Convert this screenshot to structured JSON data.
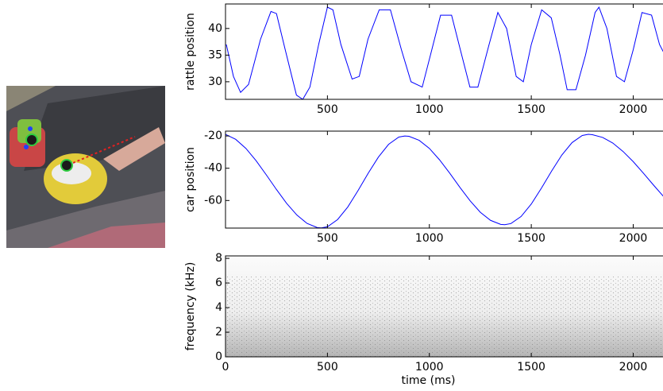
{
  "chart_data": [
    {
      "type": "line",
      "ylabel": "rattle position",
      "x": [
        4,
        39,
        74,
        113,
        172,
        223,
        250,
        293,
        348,
        379,
        414,
        457,
        500,
        527,
        566,
        621,
        656,
        699,
        754,
        809,
        863,
        910,
        965,
        1012,
        1055,
        1109,
        1152,
        1199,
        1238,
        1293,
        1336,
        1379,
        1426,
        1461,
        1500,
        1551,
        1598,
        1641,
        1676,
        1719,
        1766,
        1813,
        1832,
        1871,
        1918,
        1957,
        2000,
        2043,
        2090,
        2129,
        2156
      ],
      "series": [
        {
          "color": "#0000ff",
          "values": [
            37,
            31,
            28,
            29.5,
            38,
            43.2,
            42.8,
            36,
            27.5,
            26.7,
            29,
            37,
            44,
            43.5,
            37,
            30.5,
            31,
            38,
            43.5,
            43.5,
            36,
            30,
            29,
            36,
            42.5,
            42.5,
            36,
            29,
            29,
            37,
            43,
            40,
            31,
            30,
            37,
            43.5,
            42,
            35,
            28.5,
            28.5,
            35,
            43,
            44,
            40,
            31,
            30,
            36,
            43,
            42.5,
            37,
            35
          ]
        }
      ],
      "xlim": [
        0,
        2150
      ],
      "ylim": [
        26.7,
        44.6
      ],
      "xticks": [
        500,
        1000,
        1500,
        2000
      ],
      "yticks": [
        30,
        35,
        40
      ]
    },
    {
      "type": "line",
      "ylabel": "car position",
      "x": [
        0,
        50,
        100,
        150,
        200,
        250,
        300,
        350,
        400,
        450,
        470,
        500,
        550,
        600,
        650,
        700,
        750,
        800,
        850,
        880,
        900,
        950,
        1000,
        1050,
        1100,
        1150,
        1200,
        1250,
        1300,
        1350,
        1370,
        1400,
        1450,
        1500,
        1550,
        1600,
        1650,
        1700,
        1750,
        1780,
        1800,
        1850,
        1900,
        1950,
        2000,
        2050,
        2100,
        2150
      ],
      "series": [
        {
          "color": "#0000ff",
          "values": [
            -19,
            -22.1,
            -27.7,
            -35.3,
            -44.1,
            -53.2,
            -61.8,
            -69,
            -74.2,
            -76.8,
            -77,
            -76.3,
            -71.8,
            -64,
            -53.9,
            -43.1,
            -33.1,
            -25.2,
            -20.7,
            -20,
            -20.2,
            -22.7,
            -27.7,
            -34.8,
            -43.1,
            -51.9,
            -60.2,
            -67.3,
            -72.3,
            -74.8,
            -75,
            -74.3,
            -69.9,
            -62.2,
            -52.3,
            -41.7,
            -31.8,
            -24.1,
            -19.7,
            -19,
            -19.2,
            -20.9,
            -24.4,
            -29.6,
            -35.9,
            -43.1,
            -50.5,
            -57.7
          ]
        }
      ],
      "xlim": [
        0,
        2150
      ],
      "ylim": [
        -77.1,
        -17
      ],
      "xticks": [
        500,
        1000,
        1500,
        2000
      ],
      "yticks": [
        -60,
        -40,
        -20
      ]
    },
    {
      "type": "spectrogram",
      "ylabel": "frequency (kHz)",
      "xlabel": "time (ms)",
      "xlim": [
        0,
        2150
      ],
      "ylim": [
        0,
        8.2
      ],
      "xticks": [
        0,
        500,
        1000,
        1500,
        2000
      ],
      "yticks": [
        0,
        2,
        4,
        6,
        8
      ]
    }
  ]
}
